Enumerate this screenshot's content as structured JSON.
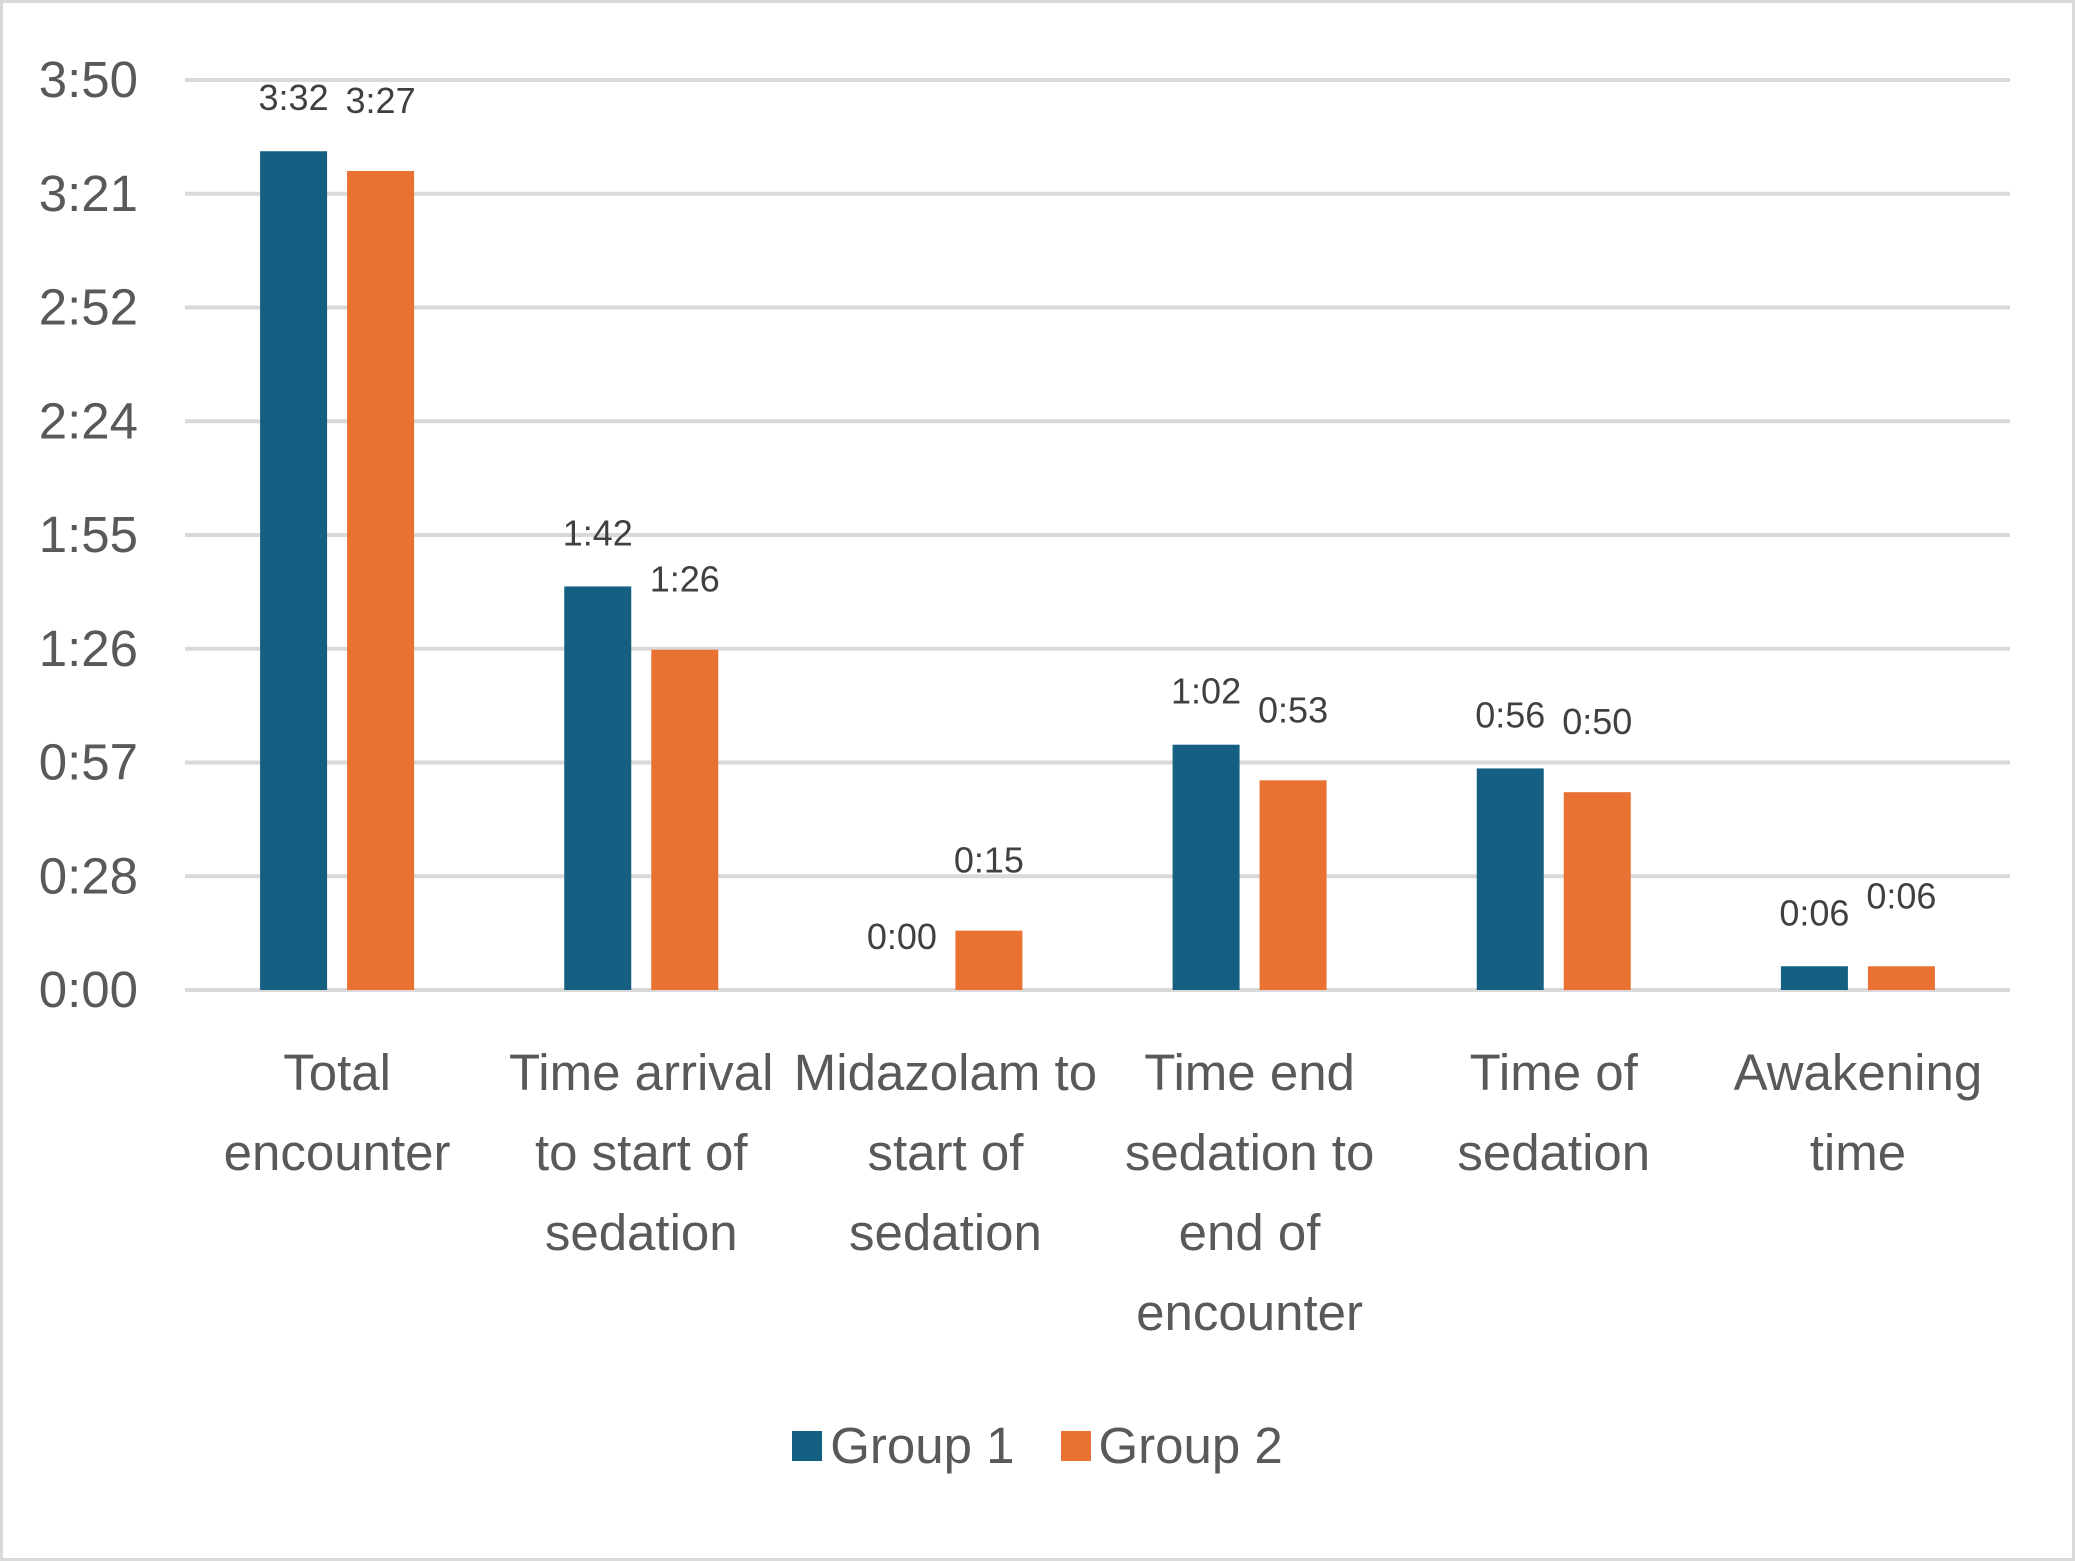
{
  "chart_data": {
    "type": "bar",
    "title": "",
    "xlabel": "",
    "ylabel": "",
    "ylim": [
      0,
      230
    ],
    "y_ticks": [
      "0:00",
      "0:28",
      "0:57",
      "1:26",
      "1:55",
      "2:24",
      "2:52",
      "3:21",
      "3:50"
    ],
    "y_tick_values": [
      0,
      28.75,
      57.5,
      86.25,
      115,
      143.75,
      172.5,
      201.25,
      230
    ],
    "grid": true,
    "legend_position": "bottom",
    "categories": [
      [
        "Total",
        "encounter"
      ],
      [
        "Time arrival",
        "to start of",
        "sedation"
      ],
      [
        "Midazolam to",
        "start of",
        "sedation"
      ],
      [
        "Time end",
        "sedation to",
        "end of",
        "encounter"
      ],
      [
        "Time of",
        "sedation"
      ],
      [
        "Awakening",
        "time"
      ]
    ],
    "series": [
      {
        "name": "Group 1",
        "color": "#156082",
        "values": [
          212,
          102,
          0,
          62,
          56,
          6
        ],
        "labels": [
          "3:32",
          "1:42",
          "0:00",
          "1:02",
          "0:56",
          "0:06"
        ]
      },
      {
        "name": "Group 2",
        "color": "#E97132",
        "values": [
          207,
          86,
          15,
          53,
          50,
          6
        ],
        "labels": [
          "3:27",
          "1:26",
          "0:15",
          "0:53",
          "0:50",
          "0:06"
        ]
      }
    ]
  }
}
